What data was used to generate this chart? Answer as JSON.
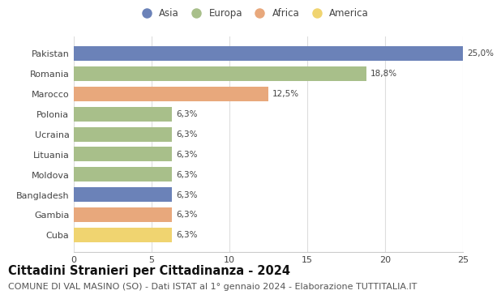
{
  "countries": [
    "Pakistan",
    "Romania",
    "Marocco",
    "Polonia",
    "Ucraina",
    "Lituania",
    "Moldova",
    "Bangladesh",
    "Gambia",
    "Cuba"
  ],
  "values": [
    25.0,
    18.8,
    12.5,
    6.3,
    6.3,
    6.3,
    6.3,
    6.3,
    6.3,
    6.3
  ],
  "labels": [
    "25,0%",
    "18,8%",
    "12,5%",
    "6,3%",
    "6,3%",
    "6,3%",
    "6,3%",
    "6,3%",
    "6,3%",
    "6,3%"
  ],
  "continents": [
    "Asia",
    "Europa",
    "Africa",
    "Europa",
    "Europa",
    "Europa",
    "Europa",
    "Asia",
    "Africa",
    "America"
  ],
  "colors": {
    "Asia": "#6b82b8",
    "Europa": "#a8bf8a",
    "Africa": "#e8a87c",
    "America": "#f0d470"
  },
  "legend_order": [
    "Asia",
    "Europa",
    "Africa",
    "America"
  ],
  "title": "Cittadini Stranieri per Cittadinanza - 2024",
  "subtitle": "COMUNE DI VAL MASINO (SO) - Dati ISTAT al 1° gennaio 2024 - Elaborazione TUTTITALIA.IT",
  "xlim": [
    0,
    25
  ],
  "xticks": [
    0,
    5,
    10,
    15,
    20,
    25
  ],
  "background_color": "#ffffff",
  "grid_color": "#dddddd",
  "title_fontsize": 10.5,
  "subtitle_fontsize": 8,
  "label_fontsize": 7.5,
  "tick_fontsize": 8,
  "legend_fontsize": 8.5
}
